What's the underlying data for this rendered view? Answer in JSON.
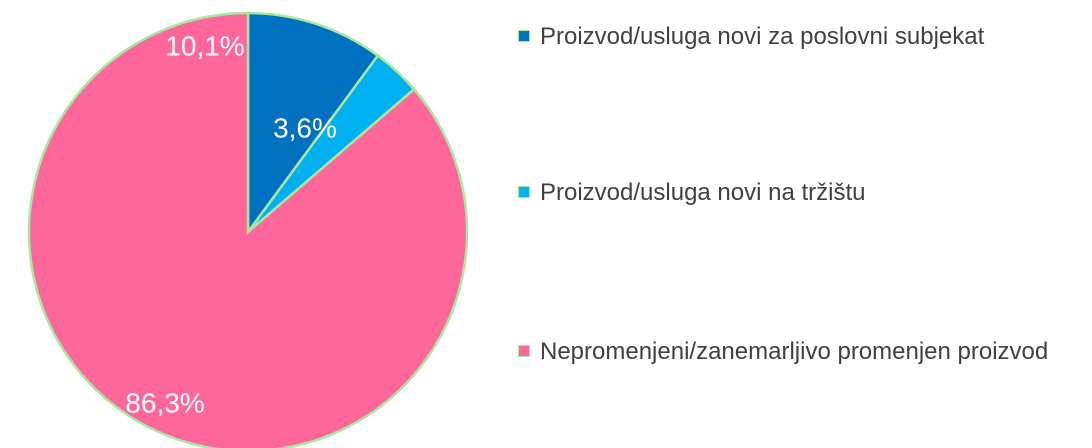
{
  "chart_data": {
    "type": "pie",
    "categories": [
      "Proizvod/usluga novi za poslovni subjekat",
      "Proizvod/usluga novi na tržištu",
      "Nepromenjeni/zanemarljivo promenjen proizvod"
    ],
    "values": [
      10.1,
      3.6,
      86.3
    ],
    "value_labels": [
      "10,1%",
      "3,6%",
      "86,3%"
    ],
    "colors": [
      "#0070c0",
      "#00b0f0",
      "#ff6699"
    ],
    "legend": "right"
  }
}
